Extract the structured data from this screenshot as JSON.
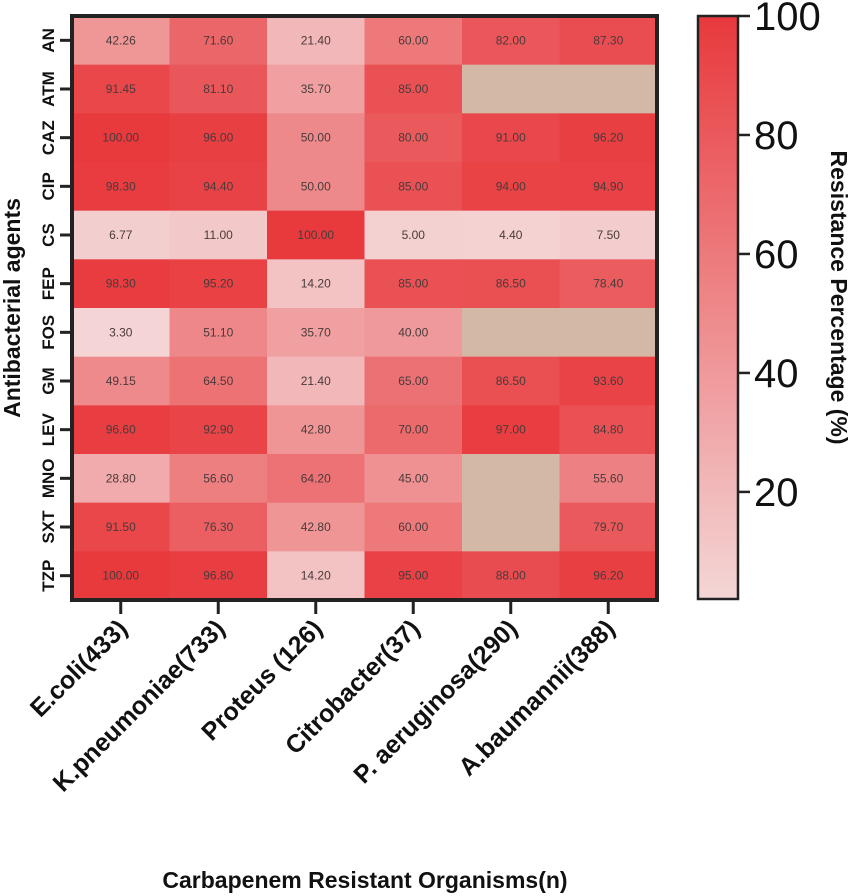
{
  "chart_data": {
    "type": "heatmap",
    "title": "",
    "xlabel": "Carbapenem Resistant Organisms(n)",
    "ylabel": "Antibacterial agents",
    "columns": [
      "E.coli(433)",
      "K.pneumoniae(733)",
      "Proteus (126)",
      "Citrobacter(37)",
      "P. aeruginosa(290)",
      "A.baumannii(388)"
    ],
    "rows": [
      "AN",
      "ATM",
      "CAZ",
      "CIP",
      "CS",
      "FEP",
      "FOS",
      "GM",
      "LEV",
      "MNO",
      "SXT",
      "TZP"
    ],
    "values": [
      [
        42.26,
        71.6,
        21.4,
        60.0,
        82.0,
        87.3
      ],
      [
        91.45,
        81.1,
        35.7,
        85.0,
        null,
        null
      ],
      [
        100.0,
        96.0,
        50.0,
        80.0,
        91.0,
        96.2
      ],
      [
        98.3,
        94.4,
        50.0,
        85.0,
        94.0,
        94.9
      ],
      [
        6.77,
        11.0,
        100.0,
        5.0,
        4.4,
        7.5
      ],
      [
        98.3,
        95.2,
        14.2,
        85.0,
        86.5,
        78.4
      ],
      [
        3.3,
        51.1,
        35.7,
        40.0,
        null,
        null
      ],
      [
        49.15,
        64.5,
        21.4,
        65.0,
        86.5,
        93.6
      ],
      [
        96.6,
        92.9,
        42.8,
        70.0,
        97.0,
        84.8
      ],
      [
        28.8,
        56.6,
        64.2,
        45.0,
        null,
        55.6
      ],
      [
        91.5,
        76.3,
        42.8,
        60.0,
        null,
        79.7
      ],
      [
        100.0,
        96.8,
        14.2,
        95.0,
        88.0,
        96.2
      ]
    ],
    "value_format_decimals": 2,
    "colorbar": {
      "label": "Resistance Percentage (%)",
      "range": [
        2,
        100
      ],
      "ticks": [
        20,
        40,
        60,
        80,
        100
      ],
      "color_low": "#f4d6d6",
      "color_high": "#e8393d",
      "missing_color": "#d4b8a6"
    }
  }
}
